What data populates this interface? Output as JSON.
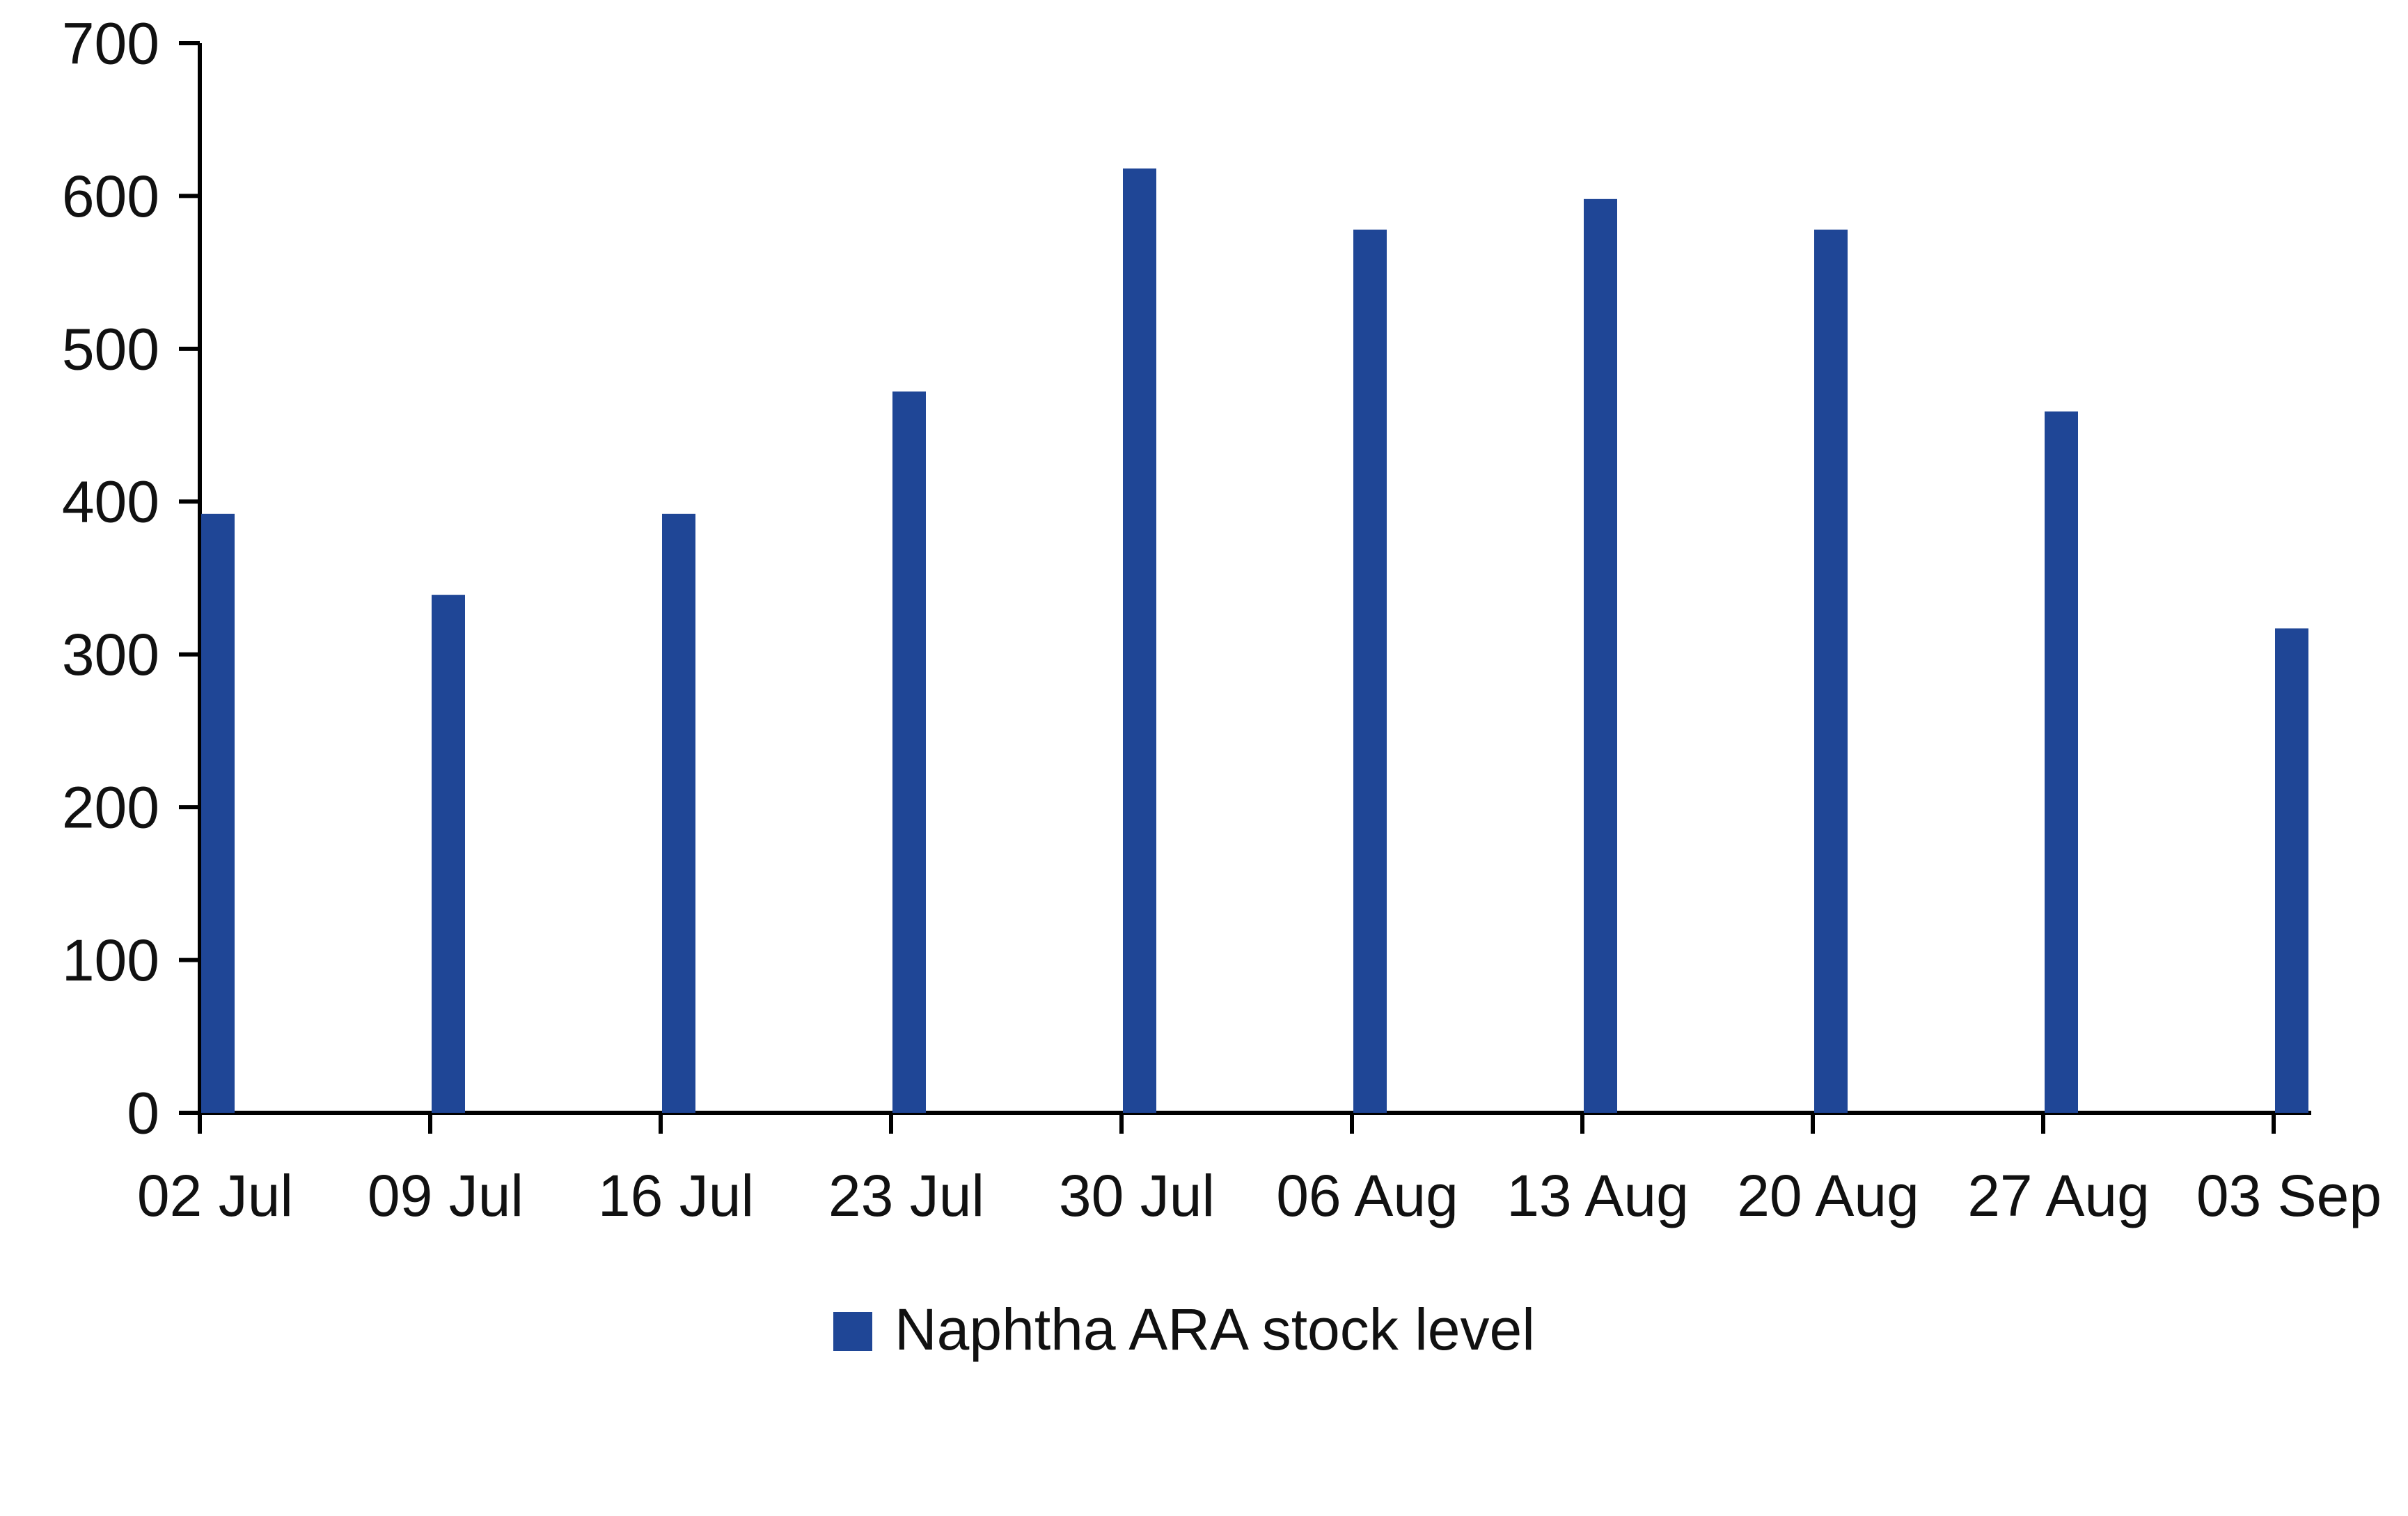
{
  "chart_data": {
    "type": "bar",
    "title": "",
    "xlabel": "",
    "ylabel": "",
    "categories": [
      "02 Jul",
      "09 Jul",
      "16 Jul",
      "23 Jul",
      "30 Jul",
      "06 Aug",
      "13 Aug",
      "20 Aug",
      "27 Aug",
      "03 Sep"
    ],
    "series": [
      {
        "name": "Naphtha ARA stock level",
        "color": "#1F4696",
        "values": [
          392,
          339,
          392,
          472,
          618,
          578,
          598,
          578,
          459,
          317
        ]
      }
    ],
    "ylim": [
      0,
      700
    ],
    "yticks": [
      "0",
      "100",
      "200",
      "300",
      "400",
      "500",
      "600",
      "700"
    ],
    "grid": false,
    "legend_position": "bottom-center"
  }
}
